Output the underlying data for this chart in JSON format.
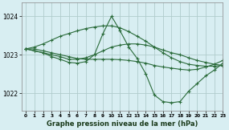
{
  "title": "Graphe pression niveau de la mer (hPa)",
  "bg_color": "#d8eef2",
  "grid_color": "#b0cccc",
  "line_color": "#2a6b3a",
  "xlim": [
    -0.5,
    23
  ],
  "ylim": [
    1021.55,
    1024.35
  ],
  "yticks": [
    1022,
    1023,
    1024
  ],
  "xticks": [
    0,
    1,
    2,
    3,
    4,
    5,
    6,
    7,
    8,
    9,
    10,
    11,
    12,
    13,
    14,
    15,
    16,
    17,
    18,
    19,
    20,
    21,
    22,
    23
  ],
  "series": [
    {
      "x": [
        0,
        1,
        2,
        3,
        4,
        5,
        6,
        7,
        8,
        9,
        10,
        11,
        12,
        13,
        14,
        15,
        16,
        17,
        18,
        19,
        20,
        21,
        22,
        23
      ],
      "y": [
        1023.15,
        1023.15,
        1023.1,
        1023.05,
        1023.0,
        1022.95,
        1022.9,
        1022.88,
        1022.88,
        1022.88,
        1022.88,
        1022.87,
        1022.85,
        1022.82,
        1022.78,
        1022.72,
        1022.68,
        1022.65,
        1022.62,
        1022.6,
        1022.62,
        1022.68,
        1022.75,
        1022.85
      ]
    },
    {
      "x": [
        0,
        1,
        2,
        3,
        4,
        5,
        6,
        7,
        8,
        9,
        10,
        11,
        12,
        13,
        14,
        15,
        16,
        17,
        18,
        19,
        20,
        21,
        22,
        23
      ],
      "y": [
        1023.15,
        1023.1,
        1023.05,
        1023.0,
        1022.95,
        1022.88,
        1022.88,
        1022.92,
        1023.0,
        1023.1,
        1023.2,
        1023.25,
        1023.28,
        1023.28,
        1023.25,
        1023.2,
        1023.12,
        1023.05,
        1023.0,
        1022.92,
        1022.85,
        1022.8,
        1022.75,
        1022.72
      ]
    },
    {
      "x": [
        0,
        1,
        2,
        3,
        4,
        5,
        6,
        7,
        8,
        9,
        10,
        11,
        12,
        13,
        14,
        15,
        16,
        17,
        18,
        19,
        20,
        21,
        22,
        23
      ],
      "y": [
        1023.15,
        1023.1,
        1023.05,
        1022.95,
        1022.88,
        1022.8,
        1022.78,
        1022.82,
        1023.0,
        1023.55,
        1024.0,
        1023.62,
        1023.2,
        1022.9,
        1022.5,
        1021.95,
        1021.78,
        1021.75,
        1021.78,
        1022.05,
        1022.25,
        1022.45,
        1022.6,
        1022.78
      ]
    },
    {
      "x": [
        0,
        1,
        2,
        3,
        4,
        5,
        6,
        7,
        8,
        9,
        10,
        11,
        12,
        13,
        14,
        15,
        16,
        17,
        18,
        19,
        20,
        21,
        22,
        23
      ],
      "y": [
        1023.15,
        1023.2,
        1023.28,
        1023.38,
        1023.48,
        1023.55,
        1023.62,
        1023.68,
        1023.72,
        1023.75,
        1023.75,
        1023.7,
        1023.6,
        1023.48,
        1023.35,
        1023.2,
        1023.05,
        1022.92,
        1022.82,
        1022.75,
        1022.72,
        1022.7,
        1022.7,
        1022.72
      ]
    }
  ]
}
